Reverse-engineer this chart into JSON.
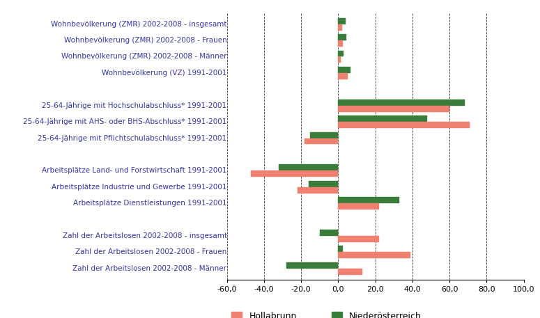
{
  "categories": [
    "Wohnbevölkerung (ZMR) 2002-2008 - insgesamt",
    "Wohnbevölkerung (ZMR) 2002-2008 - Frauen",
    "Wohnbevölkerung (ZMR) 2002-2008 - Männer",
    "Wohnbevölkerung (VZ) 1991-2001",
    "",
    "25-64-Jährige mit Hochschulabschluss* 1991-2001",
    "25-64-Jährige mit AHS- oder BHS-Abschluss* 1991-2001",
    "25-64-Jährige mit Pflichtschulabschluss* 1991-2001",
    "",
    "Arbeitsplätze Land- und Forstwirtschaft 1991-2001",
    "Arbeitsplätze Industrie und Gewerbe 1991-2001",
    "Arbeitsplätze Dienstleistungen 1991-2001",
    "",
    "Zahl der Arbeitslosen 2002-2008 - insgesamt",
    "Zahl der Arbeitslosen 2002-2008 - Frauen",
    "Zahl der Arbeitslosen 2002-2008 - Männer"
  ],
  "hollabrunn": [
    2.0,
    2.5,
    1.5,
    5.0,
    null,
    60.0,
    71.0,
    -18.0,
    null,
    -47.0,
    -22.0,
    22.0,
    null,
    22.0,
    39.0,
    13.0
  ],
  "niederoesterreich": [
    4.0,
    4.5,
    3.0,
    6.5,
    null,
    68.0,
    48.0,
    -15.0,
    null,
    -32.0,
    -16.0,
    33.0,
    null,
    -10.0,
    2.5,
    -28.0
  ],
  "color_hollabrunn": "#f08070",
  "color_niederoesterreich": "#3a7d3a",
  "xlim": [
    -60,
    100
  ],
  "xticks": [
    -60,
    -40,
    -20,
    0,
    20,
    40,
    60,
    80,
    100
  ],
  "xticklabels": [
    "-60,0",
    "-40,0",
    "-20,0",
    "0,0",
    "20,0",
    "40,0",
    "60,0",
    "80,0",
    "100,0"
  ],
  "label_hollabrunn": "Hollabrunn",
  "label_niederoesterreich": "Niederösterreich",
  "text_color": "#3333aa",
  "background_color": "#ffffff",
  "bar_height": 0.38
}
